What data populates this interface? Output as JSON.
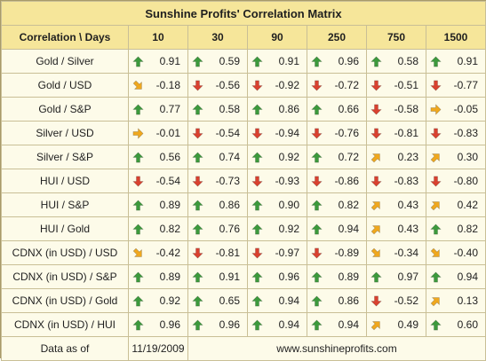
{
  "title": "Sunshine Profits' Correlation Matrix",
  "header": {
    "corner": "Correlation \\ Days",
    "days": [
      "10",
      "30",
      "90",
      "250",
      "750",
      "1500"
    ]
  },
  "rows": [
    {
      "pair": "Gold / Silver",
      "cells": [
        {
          "value": "0.91",
          "arrow": "up"
        },
        {
          "value": "0.59",
          "arrow": "up"
        },
        {
          "value": "0.91",
          "arrow": "up"
        },
        {
          "value": "0.96",
          "arrow": "up"
        },
        {
          "value": "0.58",
          "arrow": "up"
        },
        {
          "value": "0.91",
          "arrow": "up"
        }
      ]
    },
    {
      "pair": "Gold / USD",
      "cells": [
        {
          "value": "-0.18",
          "arrow": "down-right"
        },
        {
          "value": "-0.56",
          "arrow": "down"
        },
        {
          "value": "-0.92",
          "arrow": "down"
        },
        {
          "value": "-0.72",
          "arrow": "down"
        },
        {
          "value": "-0.51",
          "arrow": "down"
        },
        {
          "value": "-0.77",
          "arrow": "down"
        }
      ]
    },
    {
      "pair": "Gold / S&P",
      "cells": [
        {
          "value": "0.77",
          "arrow": "up"
        },
        {
          "value": "0.58",
          "arrow": "up"
        },
        {
          "value": "0.86",
          "arrow": "up"
        },
        {
          "value": "0.66",
          "arrow": "up"
        },
        {
          "value": "-0.58",
          "arrow": "down"
        },
        {
          "value": "-0.05",
          "arrow": "right"
        }
      ]
    },
    {
      "pair": "Silver / USD",
      "cells": [
        {
          "value": "-0.01",
          "arrow": "right"
        },
        {
          "value": "-0.54",
          "arrow": "down"
        },
        {
          "value": "-0.94",
          "arrow": "down"
        },
        {
          "value": "-0.76",
          "arrow": "down"
        },
        {
          "value": "-0.81",
          "arrow": "down"
        },
        {
          "value": "-0.83",
          "arrow": "down"
        }
      ]
    },
    {
      "pair": "Silver / S&P",
      "cells": [
        {
          "value": "0.56",
          "arrow": "up"
        },
        {
          "value": "0.74",
          "arrow": "up"
        },
        {
          "value": "0.92",
          "arrow": "up"
        },
        {
          "value": "0.72",
          "arrow": "up"
        },
        {
          "value": "0.23",
          "arrow": "up-right"
        },
        {
          "value": "0.30",
          "arrow": "up-right"
        }
      ]
    },
    {
      "pair": "HUI / USD",
      "cells": [
        {
          "value": "-0.54",
          "arrow": "down"
        },
        {
          "value": "-0.73",
          "arrow": "down"
        },
        {
          "value": "-0.93",
          "arrow": "down"
        },
        {
          "value": "-0.86",
          "arrow": "down"
        },
        {
          "value": "-0.83",
          "arrow": "down"
        },
        {
          "value": "-0.80",
          "arrow": "down"
        }
      ]
    },
    {
      "pair": "HUI / S&P",
      "cells": [
        {
          "value": "0.89",
          "arrow": "up"
        },
        {
          "value": "0.86",
          "arrow": "up"
        },
        {
          "value": "0.90",
          "arrow": "up"
        },
        {
          "value": "0.82",
          "arrow": "up"
        },
        {
          "value": "0.43",
          "arrow": "up-right"
        },
        {
          "value": "0.42",
          "arrow": "up-right"
        }
      ]
    },
    {
      "pair": "HUI / Gold",
      "cells": [
        {
          "value": "0.82",
          "arrow": "up"
        },
        {
          "value": "0.76",
          "arrow": "up"
        },
        {
          "value": "0.92",
          "arrow": "up"
        },
        {
          "value": "0.94",
          "arrow": "up"
        },
        {
          "value": "0.43",
          "arrow": "up-right"
        },
        {
          "value": "0.82",
          "arrow": "up"
        }
      ]
    },
    {
      "pair": "CDNX (in USD) / USD",
      "cells": [
        {
          "value": "-0.42",
          "arrow": "down-right"
        },
        {
          "value": "-0.81",
          "arrow": "down"
        },
        {
          "value": "-0.97",
          "arrow": "down"
        },
        {
          "value": "-0.89",
          "arrow": "down"
        },
        {
          "value": "-0.34",
          "arrow": "down-right"
        },
        {
          "value": "-0.40",
          "arrow": "down-right"
        }
      ]
    },
    {
      "pair": "CDNX (in USD) / S&P",
      "cells": [
        {
          "value": "0.89",
          "arrow": "up"
        },
        {
          "value": "0.91",
          "arrow": "up"
        },
        {
          "value": "0.96",
          "arrow": "up"
        },
        {
          "value": "0.89",
          "arrow": "up"
        },
        {
          "value": "0.97",
          "arrow": "up"
        },
        {
          "value": "0.94",
          "arrow": "up"
        }
      ]
    },
    {
      "pair": "CDNX (in USD) / Gold",
      "cells": [
        {
          "value": "0.92",
          "arrow": "up"
        },
        {
          "value": "0.65",
          "arrow": "up"
        },
        {
          "value": "0.94",
          "arrow": "up"
        },
        {
          "value": "0.86",
          "arrow": "up"
        },
        {
          "value": "-0.52",
          "arrow": "down"
        },
        {
          "value": "0.13",
          "arrow": "up-right"
        }
      ]
    },
    {
      "pair": "CDNX (in USD) / HUI",
      "cells": [
        {
          "value": "0.96",
          "arrow": "up"
        },
        {
          "value": "0.96",
          "arrow": "up"
        },
        {
          "value": "0.94",
          "arrow": "up"
        },
        {
          "value": "0.94",
          "arrow": "up"
        },
        {
          "value": "0.49",
          "arrow": "up-right"
        },
        {
          "value": "0.60",
          "arrow": "up"
        }
      ]
    }
  ],
  "footer": {
    "label": "Data as of",
    "date": "11/19/2009",
    "website": "www.sunshineprofits.com"
  },
  "colors": {
    "up": "#3c9a3c",
    "down": "#d9412f",
    "sideways": "#f0a81e",
    "header_bg": "#f6e69a",
    "cell_bg": "#fdfbe9"
  }
}
